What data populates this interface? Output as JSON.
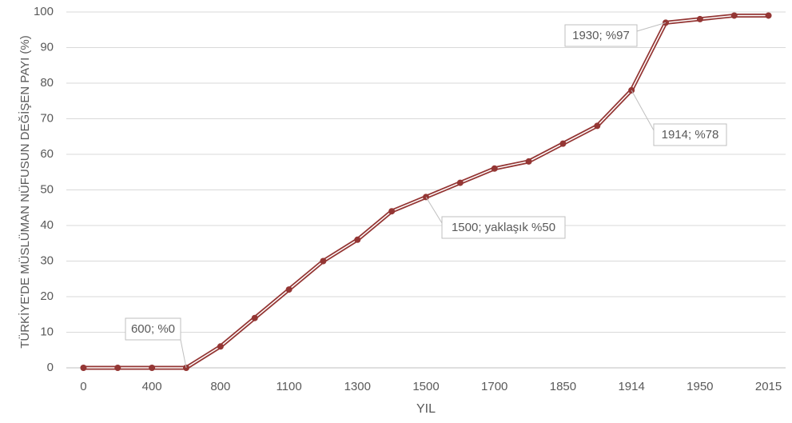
{
  "chart_data": {
    "type": "line",
    "y_label": "TÜRKİYE'DE MÜSLÜMAN NÜFUSUN DEĞİŞEN PAYI (%)",
    "x_label": "YIL",
    "categories": [
      "0",
      null,
      "400",
      null,
      "800",
      null,
      "1100",
      null,
      "1300",
      null,
      "1500",
      null,
      "1700",
      null,
      "1850",
      null,
      "1914",
      null,
      "1950",
      null,
      "2015"
    ],
    "values": [
      0,
      0,
      0,
      0,
      6,
      14,
      22,
      30,
      36,
      44,
      48,
      52,
      56,
      58,
      63,
      68,
      78,
      97,
      98,
      99,
      99
    ],
    "color": "#943634",
    "ylim": [
      0,
      100
    ],
    "yticks": [
      0,
      10,
      20,
      30,
      40,
      50,
      60,
      70,
      80,
      90,
      100
    ],
    "grid": true,
    "annotations": [
      "600; %0",
      "1500; yaklaşık %50",
      "1914; %78",
      "1930; %97"
    ]
  }
}
